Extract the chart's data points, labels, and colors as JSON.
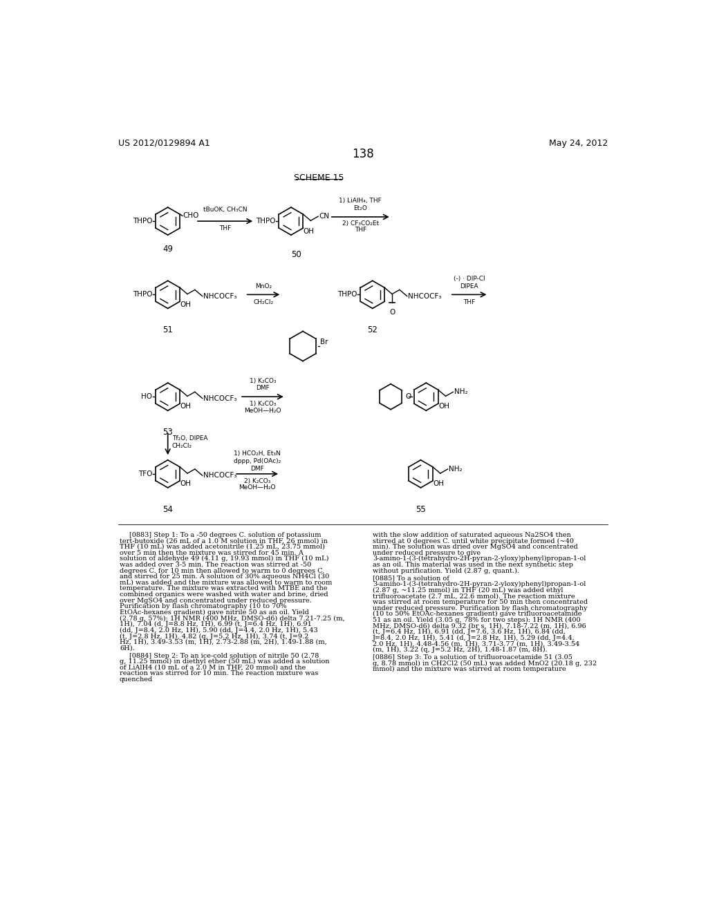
{
  "page_background": "#ffffff",
  "header_left": "US 2012/0129894 A1",
  "header_right": "May 24, 2012",
  "page_number": "138",
  "scheme_title": "SCHEME 15",
  "body_text_left": "[0883]   Step 1: To a -50 degrees C. solution of potassium tert-butoxide (26 mL of a 1.0 M solution in THF, 26 mmol) in THF (10 mL) was added acetonitrile (1.25 mL, 23.75 mmol) over 5 min then the mixture was stirred for 45 min. A solution of aldehyde 49 (4.11 g, 19.93 mmol) in THF (10 mL) was added over 3-5 min. The reaction was stirred at -50 degrees C. for 10 min then allowed to warm to 0 degrees C. and stirred for 25 min. A solution of 30% aqueous NH4Cl (30 mL) was added and the mixture was allowed to warm to room temperature. The mixture was extracted with MTBE and the combined organics were washed with water and brine, dried over MgSO4 and concentrated under reduced pressure. Purification by flash chromatography (10 to 70% EtOAc-hexanes gradient) gave nitrile 50 as an oil. Yield (2.78 g, 57%): 1H NMR (400 MHz, DMSO-d6) delta 7.21-7.25 (m, 1H), 7.04 (d, J=8.8 Hz, 1H), 6.99 (t, J=6.4 Hz, 1H), 6.91 (dd, J=8.4, 2.0 Hz, 1H), 5.90 (dd, J=4.4, 2.0 Hz, 1H), 5.43 (t, J=2.8 Hz, 1H), 4.82 (q, J=5.2 Hz, 1H), 3.74 (t, J=9.2 Hz, 1H), 3.49-3.53 (m, 1H), 2.73-2.88 (m, 2H), 1.49-1.88 (m, 6H).",
  "body_text_left2": "[0884]   Step 2: To an ice-cold solution of nitrile 50 (2.78 g, 11.25 mmol) in diethyl ether (50 mL) was added a solution of LiAlH4 (10 mL of a 2.0 M in THF, 20 mmol) and the reaction was stirred for 10 min. The reaction mixture was quenched",
  "body_text_right": "with the slow addition of saturated aqueous Na2SO4 then stirred at 0 degrees C. until white precipitate formed (~40 min). The solution was dried over MgSO4 and concentrated under reduced pressure to give 3-amino-1-(3-(tetrahydro-2H-pyran-2-yloxy)phenyl)propan-1-ol as an oil. This material was used in the next synthetic step without purification. Yield (2.87 g, quant.).",
  "body_text_right2": "[0885]   To a solution of 3-amino-1-(3-(tetrahydro-2H-pyran-2-yloxy)phenyl)propan-1-ol (2.87 g, ~11.25 mmol) in THF (20 mL) was added ethyl trifluoroacetate (2.7 mL, 22.6 mmol). The reaction mixture was stirred at room temperature for 50 min then concentrated under reduced pressure. Purification by flash chromatography (10 to 50% EtOAc-hexanes gradient) gave trifluoroacetamide 51 as an oil. Yield (3.05 g, 78% for two steps): 1H NMR (400 MHz, DMSO-d6) delta 9.32 (br s, 1H), 7.18-7.22 (m, 1H), 6.96 (t, J=6.4 Hz, 1H), 6.91 (dd, J=7.6, 3.6 Hz, 1H), 6.84 (dd, J=8.4, 2.0 Hz, 1H), 5.41 (d, J=2.8 Hz, 1H), 5.29 (dd, J=4.4, 2.0 Hz, 1H), 4.48-4.56 (m, 1H), 3.71-3.77 (m, 1H), 3.49-3.54 (m, 1H), 3.22 (q, J=5.2 Hz, 2H), 1.48-1.87 (m, 8H).",
  "body_text_right3": "[0886]   Step 3: To a solution of trifluoroacetamide 51 (3.05 g, 8.78 mmol) in CH2Cl2 (50 mL) was added MnO2 (20.18 g, 232 mmol) and the mixture was stirred at room temperature"
}
